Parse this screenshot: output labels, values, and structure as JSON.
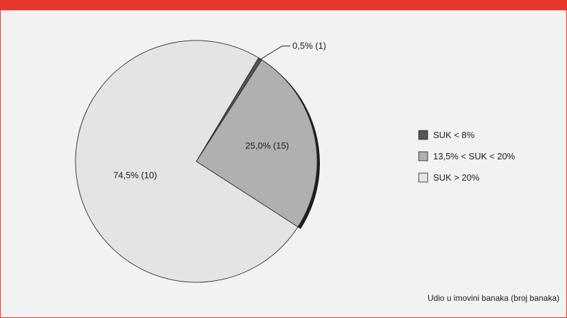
{
  "chart_data": {
    "type": "pie",
    "title": "",
    "note": "Udio u imovini banaka (broj banaka)",
    "legend_position": "right",
    "slices": [
      {
        "name": "SUK < 8%",
        "value": 0.5,
        "count": 1,
        "label": "0,5% (1)",
        "color": "#555555"
      },
      {
        "name": "13,5% < SUK < 20%",
        "value": 25.0,
        "count": 15,
        "label": "25,0% (15)",
        "color": "#b0b0b0"
      },
      {
        "name": "SUK > 20%",
        "value": 74.5,
        "count": 10,
        "label": "74,5% (10)",
        "color": "#e4e4e4"
      }
    ]
  }
}
